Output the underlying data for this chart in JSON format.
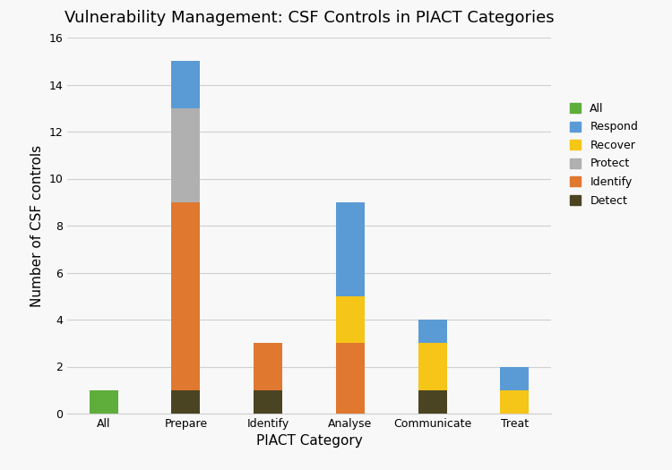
{
  "categories": [
    "All",
    "Prepare",
    "Identify",
    "Analyse",
    "Communicate",
    "Treat"
  ],
  "title": "Vulnerability Management: CSF Controls in PIACT Categories",
  "xlabel": "PIACT Category",
  "ylabel": "Number of CSF controls",
  "ylim": [
    0,
    16
  ],
  "yticks": [
    0,
    2,
    4,
    6,
    8,
    10,
    12,
    14,
    16
  ],
  "series": {
    "All": [
      1,
      0,
      0,
      0,
      0,
      0
    ],
    "Detect": [
      0,
      1,
      1,
      0,
      1,
      0
    ],
    "Identify": [
      0,
      8,
      2,
      3,
      0,
      0
    ],
    "Protect": [
      0,
      4,
      0,
      0,
      0,
      0
    ],
    "Recover": [
      0,
      0,
      0,
      2,
      2,
      1
    ],
    "Respond": [
      0,
      2,
      0,
      4,
      1,
      1
    ]
  },
  "colors": {
    "All": "#5fad3b",
    "Detect": "#4a4422",
    "Identify": "#e07830",
    "Protect": "#b0b0b0",
    "Recover": "#f5c518",
    "Respond": "#5b9bd5"
  },
  "legend_order": [
    "All",
    "Respond",
    "Recover",
    "Protect",
    "Identify",
    "Detect"
  ],
  "bar_width": 0.35,
  "background_color": "#f8f8f8",
  "grid_color": "#d0d0d0",
  "title_fontsize": 13,
  "axis_label_fontsize": 11,
  "tick_fontsize": 9,
  "legend_fontsize": 9
}
